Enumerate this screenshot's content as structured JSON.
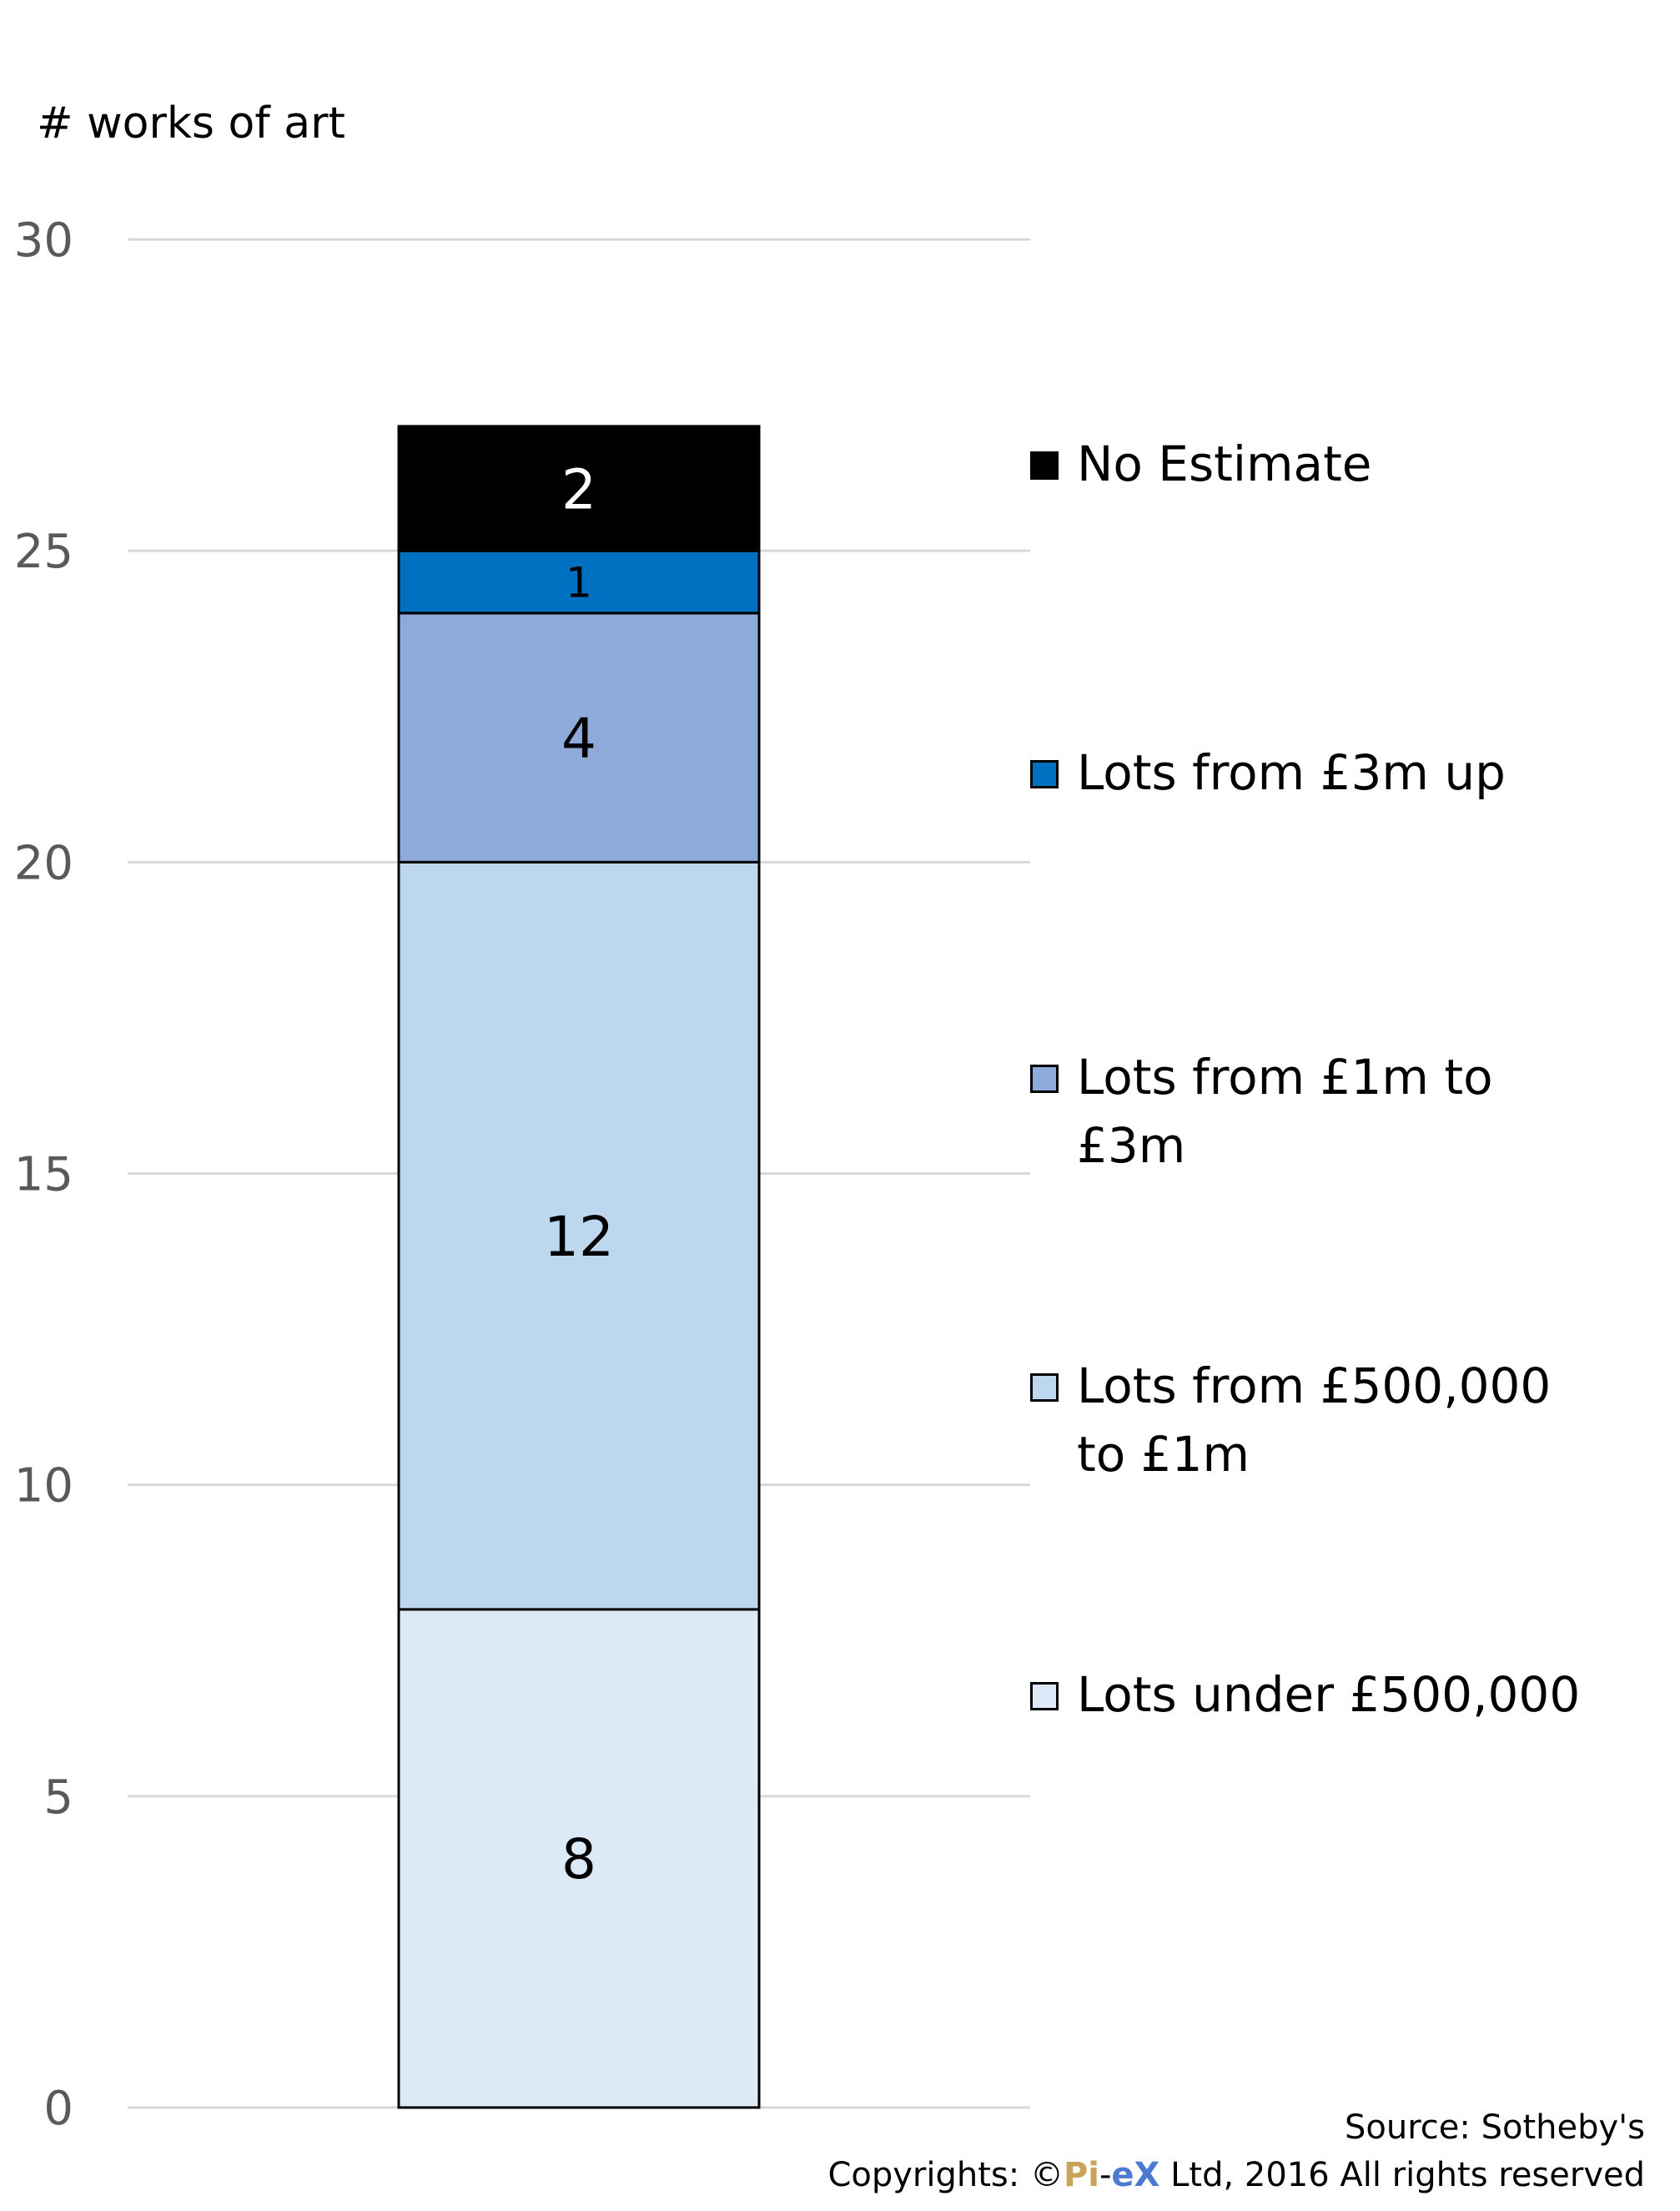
{
  "chart_data": {
    "type": "bar",
    "stacked": true,
    "ylabel": "# works of art",
    "ylim": [
      0,
      30
    ],
    "yticks": [
      0,
      5,
      10,
      15,
      20,
      25,
      30
    ],
    "grid": true,
    "legend_position": "right",
    "series": [
      {
        "name": "Lots under £500,000",
        "value": 8,
        "color": "#dce9f6"
      },
      {
        "name": "Lots from £500,000 to £1m",
        "value": 12,
        "color": "#bdd7ee"
      },
      {
        "name": "Lots from £1m to £3m",
        "value": 4,
        "color": "#8eaadb"
      },
      {
        "name": "Lots from £3m up",
        "value": 1,
        "color": "#0070c0"
      },
      {
        "name": "No Estimate",
        "value": 2,
        "color": "#000000"
      }
    ]
  },
  "footer": {
    "source": "Source: Sotheby's",
    "copyright_prefix": "Copyrights: ©",
    "brand_pi": "Pi",
    "brand_sep": "-",
    "brand_ex": "eX",
    "copyright_suffix": " Ltd, 2016 All rights reserved"
  }
}
